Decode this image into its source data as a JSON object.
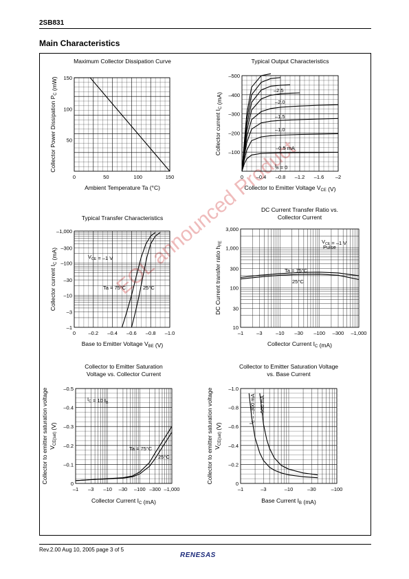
{
  "header": {
    "part_number": "2SB831"
  },
  "section_title": "Main Characteristics",
  "footer": {
    "revision": "Rev.2.00  Aug 10, 2005  page 3 of 5",
    "logo": "RENESAS"
  },
  "watermark": "EOL announced Product",
  "chart_data": [
    {
      "id": "c1",
      "type": "line",
      "title": [
        "Maximum Collector Dissipation Curve"
      ],
      "xlabel": "Ambient Temperature  Ta  (°C)",
      "ylabel": "Collector Power Dissipation  P_C  (mW)",
      "x_ticks": [
        0,
        50,
        100,
        150
      ],
      "y_ticks": [
        50,
        100,
        150
      ],
      "xlim": [
        0,
        150
      ],
      "ylim": [
        0,
        150
      ],
      "grid": true,
      "series": [
        {
          "x": [
            0,
            25,
            150
          ],
          "y": [
            150,
            150,
            0
          ]
        }
      ]
    },
    {
      "id": "c2",
      "type": "line",
      "title": [
        "Typical Output Characteristics"
      ],
      "xlabel": "Collector to Emitter Voltage  V_CE  (V)",
      "ylabel": "Collector current  I_C  (mA)",
      "x_ticks": [
        0,
        -0.4,
        -0.8,
        -1.2,
        -1.6,
        -2.0
      ],
      "y_ticks": [
        -100,
        -200,
        -300,
        -400,
        -500
      ],
      "xlim": [
        0,
        -2.0
      ],
      "ylim": [
        0,
        -500
      ],
      "grid": true,
      "annotations": [
        "–2.5",
        "–2.0",
        "–1.5",
        "–1.0",
        "–0.5 mA",
        "I_B = 0"
      ],
      "series": [
        {
          "x": [
            0,
            -0.05,
            -0.1,
            -0.2,
            -0.4,
            -0.6,
            -0.8,
            -1.2,
            -1.6,
            -2.0
          ],
          "y": [
            0,
            -40,
            -65,
            -85,
            -93,
            -95,
            -96,
            -97,
            -98,
            -99
          ]
        },
        {
          "x": [
            0,
            -0.05,
            -0.1,
            -0.2,
            -0.4,
            -0.6,
            -0.8,
            -1.2,
            -1.6,
            -2.0
          ],
          "y": [
            0,
            -60,
            -110,
            -160,
            -180,
            -186,
            -189,
            -192,
            -194,
            -196
          ]
        },
        {
          "x": [
            0,
            -0.05,
            -0.1,
            -0.2,
            -0.4,
            -0.6,
            -0.8,
            -1.2,
            -1.6,
            -2.0
          ],
          "y": [
            0,
            -80,
            -150,
            -220,
            -253,
            -262,
            -266,
            -270,
            -273,
            -276
          ]
        },
        {
          "x": [
            0,
            -0.05,
            -0.1,
            -0.2,
            -0.4,
            -0.6,
            -0.8,
            -1.2,
            -1.6,
            -2.0
          ],
          "y": [
            0,
            -95,
            -180,
            -270,
            -312,
            -328,
            -335,
            -341,
            -345,
            -348
          ]
        },
        {
          "x": [
            0,
            -0.05,
            -0.1,
            -0.2,
            -0.4,
            -0.6,
            -0.8,
            -1.0,
            -1.2
          ],
          "y": [
            0,
            -110,
            -210,
            -320,
            -378,
            -398,
            -405,
            -408,
            -410
          ]
        },
        {
          "x": [
            0,
            -0.05,
            -0.1,
            -0.2,
            -0.4,
            -0.6,
            -0.8,
            -1.0
          ],
          "y": [
            0,
            -125,
            -240,
            -360,
            -425,
            -445,
            -450,
            -452
          ]
        },
        {
          "x": [
            0,
            -0.05,
            -0.1,
            -0.2,
            -0.4,
            -0.6,
            -0.8
          ],
          "y": [
            0,
            -140,
            -270,
            -400,
            -465,
            -485,
            -490
          ]
        },
        {
          "x": [
            0,
            -0.05,
            -0.1,
            -0.2,
            -0.4,
            -0.6
          ],
          "y": [
            0,
            -155,
            -300,
            -440,
            -500,
            -510
          ]
        }
      ]
    },
    {
      "id": "c3",
      "type": "line",
      "title": [
        "Typical Transfer Characteristics"
      ],
      "xlabel": "Base to Emitter Voltage  V_BE  (V)",
      "ylabel": "Collector current  I_C  (mA)",
      "x_ticks": [
        0,
        -0.2,
        -0.4,
        -0.6,
        -0.8,
        -1.0
      ],
      "y_ticks": [
        -1,
        -3,
        -10,
        -30,
        -100,
        -300,
        -1000
      ],
      "y_tick_labels": [
        "–1",
        "–3",
        "–10",
        "–30",
        "–100",
        "–300",
        "–1,000"
      ],
      "x_tick_labels": [
        "0",
        "–0.2",
        "–0.4",
        "–0.6",
        "–0.8",
        "–1.0"
      ],
      "xlim": [
        0,
        -1.0
      ],
      "ylim": [
        -1,
        -1000
      ],
      "yscale": "log",
      "grid": true,
      "annotations": [
        "V_CE = –1 V",
        "Ta = 75°C",
        "25°C"
      ],
      "series": [
        {
          "name": "Ta = 75°C",
          "x": [
            -0.5,
            -0.55,
            -0.6,
            -0.65,
            -0.7,
            -0.75,
            -0.8,
            -0.85
          ],
          "y": [
            -1,
            -3,
            -10,
            -40,
            -150,
            -400,
            -700,
            -900
          ]
        },
        {
          "name": "25°C",
          "x": [
            -0.6,
            -0.64,
            -0.68,
            -0.72,
            -0.76,
            -0.8,
            -0.85,
            -0.9
          ],
          "y": [
            -1,
            -3,
            -10,
            -40,
            -150,
            -400,
            -700,
            -900
          ]
        }
      ]
    },
    {
      "id": "c4",
      "type": "line",
      "title": [
        "DC Current Transfer Ratio vs.",
        "Collector Current"
      ],
      "xlabel": "Collector Current  I_C  (mA)",
      "ylabel": "DC Current transfer ratio  h_FE",
      "x_ticks": [
        -1,
        -3,
        -10,
        -30,
        -100,
        -300,
        -1000
      ],
      "x_tick_labels": [
        "–1",
        "–3",
        "–10",
        "–30",
        "–100",
        "–300",
        "–1,000"
      ],
      "y_ticks": [
        10,
        30,
        100,
        300,
        1000,
        3000
      ],
      "y_tick_labels": [
        "10",
        "30",
        "100",
        "300",
        "1,000",
        "3,000"
      ],
      "xlim": [
        -1,
        -1000
      ],
      "ylim": [
        10,
        3000
      ],
      "xscale": "log",
      "yscale": "log",
      "grid": true,
      "annotations": [
        "V_CE = –1 V",
        "Pulse",
        "Ta = 75°C",
        "25°C"
      ],
      "series": [
        {
          "name": "Ta = 75°C",
          "x": [
            -1,
            -3,
            -10,
            -30,
            -100,
            -300,
            -1000
          ],
          "y": [
            180,
            205,
            225,
            240,
            245,
            235,
            200
          ]
        },
        {
          "name": "25°C",
          "x": [
            -1,
            -3,
            -10,
            -30,
            -100,
            -300,
            -1000
          ],
          "y": [
            165,
            185,
            205,
            215,
            218,
            205,
            160
          ]
        }
      ]
    },
    {
      "id": "c5",
      "type": "line",
      "title": [
        "Collector to Emitter Saturation",
        "Voltage vs. Collector Current"
      ],
      "xlabel": "Collector Current  I_C  (mA)",
      "ylabel": [
        "Collector to emitter saturation voltage",
        "V_CE(sat)  (V)"
      ],
      "x_ticks": [
        -1,
        -3,
        -10,
        -30,
        -100,
        -300,
        -1000
      ],
      "x_tick_labels": [
        "–1",
        "–3",
        "–10",
        "–30",
        "–100",
        "–300",
        "–1,000"
      ],
      "y_ticks": [
        0,
        -0.1,
        -0.2,
        -0.3,
        -0.4,
        -0.5
      ],
      "y_tick_labels": [
        "0",
        "–0.1",
        "–0.2",
        "–0.3",
        "–0.4",
        "–0.5"
      ],
      "xlim": [
        -1,
        -1000
      ],
      "ylim": [
        0,
        -0.5
      ],
      "xscale": "log",
      "grid": true,
      "annotations": [
        "I_C = 10 I_B",
        "Ta = 75°C",
        "25°C"
      ],
      "series": [
        {
          "name": "Ta = 75°C",
          "x": [
            -1,
            -3,
            -10,
            -30,
            -60,
            -100,
            -200,
            -300,
            -500,
            -1000
          ],
          "y": [
            -0.015,
            -0.02,
            -0.025,
            -0.03,
            -0.04,
            -0.06,
            -0.11,
            -0.16,
            -0.22,
            -0.3
          ]
        },
        {
          "name": "25°C",
          "x": [
            -1,
            -3,
            -10,
            -30,
            -60,
            -100,
            -200,
            -300,
            -500,
            -1000
          ],
          "y": [
            -0.015,
            -0.02,
            -0.024,
            -0.028,
            -0.035,
            -0.05,
            -0.09,
            -0.13,
            -0.19,
            -0.27
          ]
        }
      ]
    },
    {
      "id": "c6",
      "type": "line",
      "title": [
        "Collector to Emitter Saturation Voltage",
        "vs. Base Current"
      ],
      "xlabel": "Base Current  I_B  (mA)",
      "ylabel": [
        "Collector to emitter saturation voltage",
        "V_CE(sat)  (V)"
      ],
      "x_ticks": [
        -1,
        -3,
        -10,
        -30,
        -100
      ],
      "x_tick_labels": [
        "–1",
        "–3",
        "–10",
        "–30",
        "–100"
      ],
      "y_ticks": [
        0,
        -0.2,
        -0.4,
        -0.6,
        -0.8,
        -1.0
      ],
      "y_tick_labels": [
        "0",
        "–0.2",
        "–0.4",
        "–0.6",
        "–0.8",
        "–1.0"
      ],
      "xlim": [
        -1,
        -100
      ],
      "ylim": [
        0,
        -1.0
      ],
      "xscale": "log",
      "grid": true,
      "annotations": [
        "I_C = –300 mA",
        "–500 mA"
      ],
      "series": [
        {
          "name": "I_C = –300 mA",
          "x": [
            -1.5,
            -1.7,
            -2,
            -2.5,
            -3,
            -4,
            -5,
            -7,
            -10,
            -20,
            -40
          ],
          "y": [
            -0.95,
            -0.7,
            -0.48,
            -0.32,
            -0.24,
            -0.17,
            -0.14,
            -0.11,
            -0.09,
            -0.07,
            -0.06
          ]
        },
        {
          "name": "–500 mA",
          "x": [
            -2.5,
            -2.8,
            -3,
            -3.5,
            -4,
            -5,
            -7,
            -10,
            -20,
            -40
          ],
          "y": [
            -0.95,
            -0.75,
            -0.62,
            -0.46,
            -0.37,
            -0.27,
            -0.19,
            -0.15,
            -0.11,
            -0.09
          ]
        }
      ]
    }
  ]
}
